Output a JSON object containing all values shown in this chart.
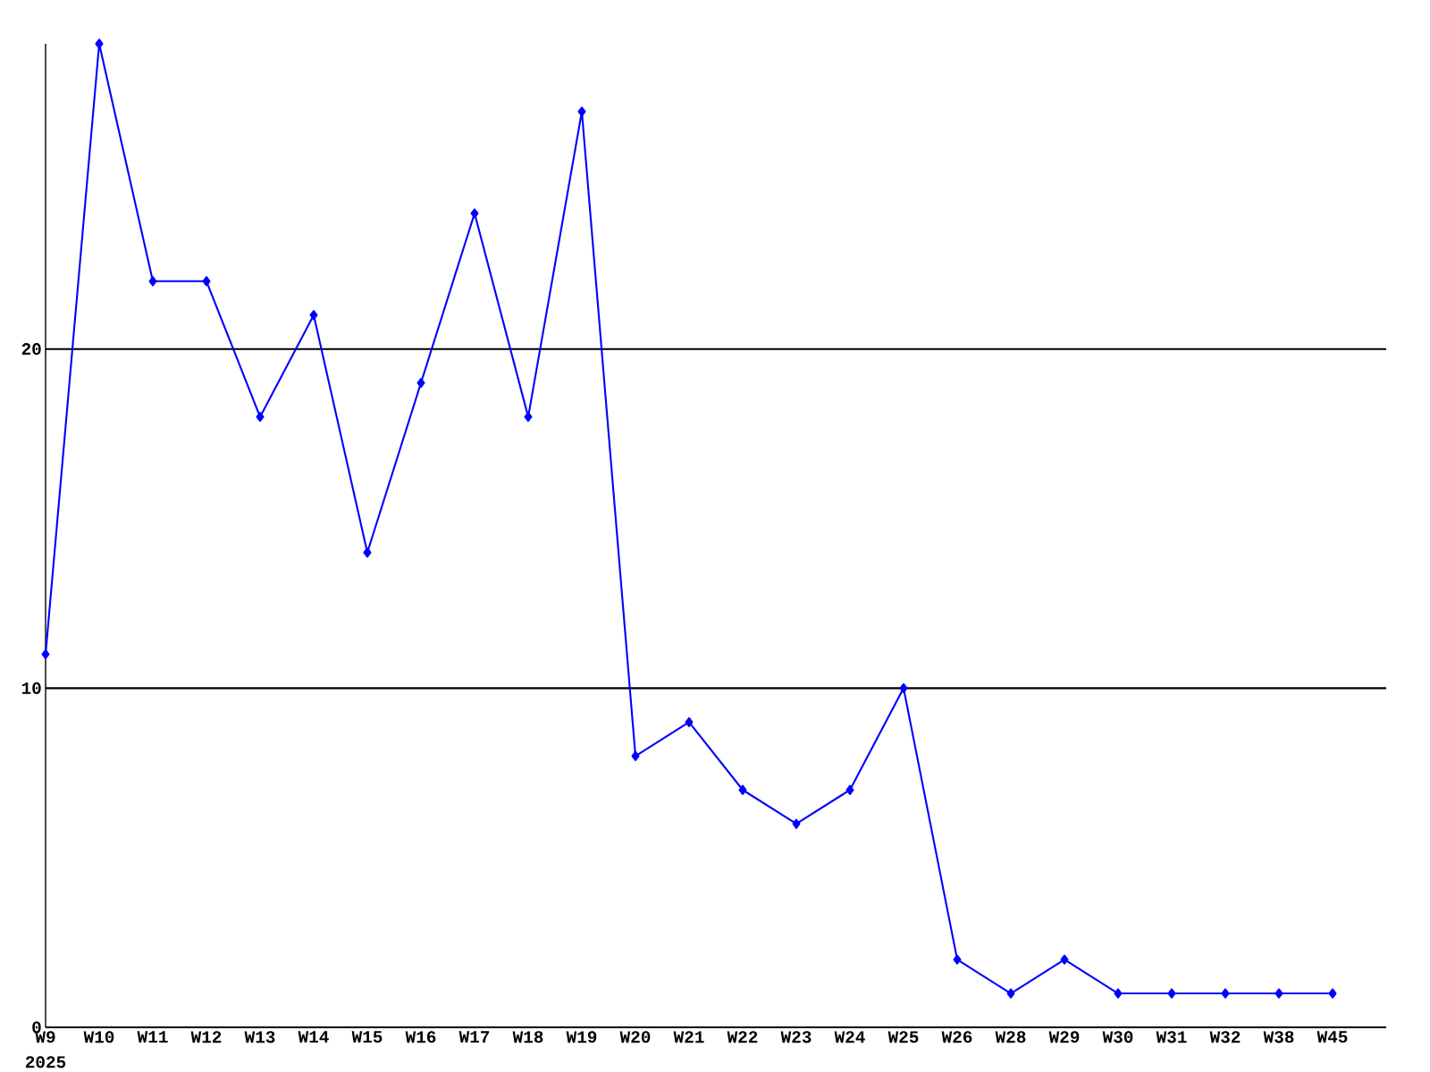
{
  "chart_data": {
    "type": "line",
    "categories": [
      "W9",
      "W10",
      "W11",
      "W12",
      "W13",
      "W14",
      "W15",
      "W16",
      "W17",
      "W18",
      "W19",
      "W20",
      "W21",
      "W22",
      "W23",
      "W24",
      "W25",
      "W26",
      "W28",
      "W29",
      "W30",
      "W31",
      "W32",
      "W38",
      "W45"
    ],
    "values": [
      11,
      29,
      22,
      22,
      18,
      21,
      14,
      19,
      24,
      18,
      27,
      8,
      9,
      7,
      6,
      7,
      10,
      2,
      1,
      2,
      1,
      1,
      1,
      1,
      1
    ],
    "color": "#0000ff",
    "ylim": [
      0,
      29
    ],
    "yticks": [
      0,
      10,
      20
    ],
    "grid": "y",
    "marker": "diamond",
    "line_style": "solid",
    "annotations": [
      "2025"
    ]
  }
}
